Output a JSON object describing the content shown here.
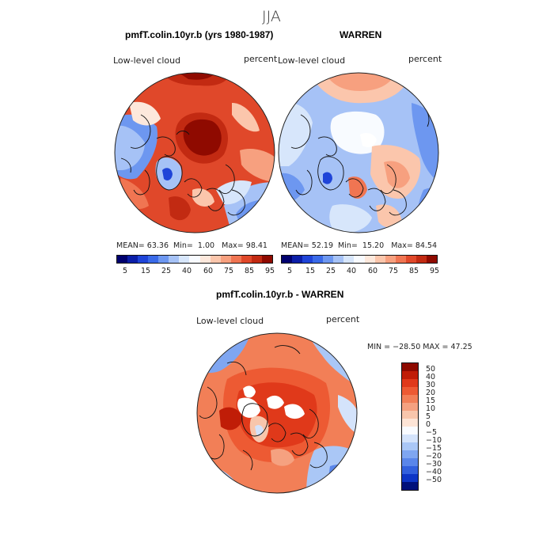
{
  "page_title": "JJA",
  "panels": [
    {
      "title": "pmfT.colin.10yr.b (yrs 1980-1987)",
      "field_label": "Low-level cloud",
      "units": "percent",
      "stats": {
        "mean_label": "MEAN=",
        "mean": "63.36",
        "min_label": "Min=",
        "min": "1.00",
        "max_label": "Max=",
        "max": "98.41"
      }
    },
    {
      "title": "WARREN",
      "field_label": "Low-level cloud",
      "units": "percent",
      "stats": {
        "mean_label": "MEAN=",
        "mean": "52.19",
        "min_label": "Min=",
        "min": "15.20",
        "max_label": "Max=",
        "max": "84.54"
      }
    },
    {
      "title": "pmfT.colin.10yr.b - WARREN",
      "field_label": "Low-level cloud",
      "units": "percent",
      "stats_line": "MIN = −28.50 MAX =  47.25"
    }
  ],
  "colorbar_top": {
    "tick_labels": [
      "5",
      "15",
      "25",
      "40",
      "60",
      "75",
      "85",
      "95"
    ],
    "colors": [
      "#00006e",
      "#0b1ea8",
      "#1f44d8",
      "#3a6ae8",
      "#6d97f0",
      "#a6c2f6",
      "#d7e6fb",
      "#f8fbff",
      "#fde8dc",
      "#fbc6ac",
      "#f7a07f",
      "#f07552",
      "#e0482a",
      "#c22a12",
      "#8f0a00"
    ]
  },
  "colorbar_diff": {
    "labels": [
      "50",
      "40",
      "30",
      "20",
      "15",
      "10",
      "5",
      "0",
      "−5",
      "−10",
      "−15",
      "−20",
      "−30",
      "−40",
      "−50"
    ],
    "colors": [
      "#8e0a00",
      "#c01d07",
      "#e0391a",
      "#ed5a33",
      "#f27f57",
      "#f5a180",
      "#f8c6ac",
      "#fde4d6",
      "#f9fbff",
      "#d4e3fb",
      "#aac7f6",
      "#7fa6f1",
      "#5a86ea",
      "#3260dd",
      "#0d35c6",
      "#00107a"
    ]
  }
}
